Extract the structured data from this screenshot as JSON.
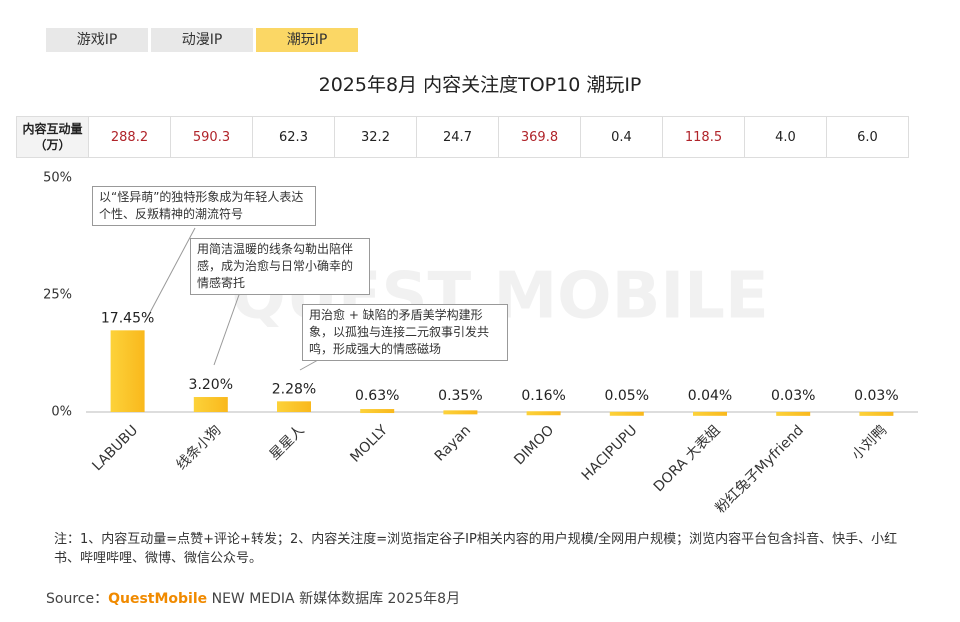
{
  "tabs": [
    "游戏IP",
    "动漫IP",
    "潮玩IP"
  ],
  "chart_data": {
    "type": "bar",
    "title": "2025年8月 内容关注度TOP10 潮玩IP",
    "watermark": "QUEST MOBILE",
    "categories": [
      "LABUBU",
      "线条小狗",
      "星星人",
      "MOLLY",
      "Rayan",
      "DIMOO",
      "HACIPUPU",
      "DORA 大表姐",
      "粉红兔子Myfriend",
      "小刘鸭"
    ],
    "values": [
      17.45,
      3.2,
      2.28,
      0.63,
      0.35,
      0.16,
      0.05,
      0.04,
      0.03,
      0.03
    ],
    "value_labels": [
      "17.45%",
      "3.20%",
      "2.28%",
      "0.63%",
      "0.35%",
      "0.16%",
      "0.05%",
      "0.04%",
      "0.03%",
      "0.03%"
    ],
    "color": "#f9b81c",
    "ylim": [
      0,
      50
    ],
    "yticks": [
      {
        "value": 0,
        "label": "0%"
      },
      {
        "value": 25,
        "label": "25%"
      },
      {
        "value": 50,
        "label": "50%"
      }
    ],
    "table_label": "内容互动量（万）",
    "table_values": [
      "288.2",
      "590.3",
      "62.3",
      "32.2",
      "24.7",
      "369.8",
      "0.4",
      "118.5",
      "4.0",
      "6.0"
    ],
    "table_colors": [
      "#b0242a",
      "#b0242a",
      "#222222",
      "#222222",
      "#222222",
      "#b0242a",
      "#222222",
      "#b0242a",
      "#222222",
      "#222222"
    ],
    "annotations": [
      "以“怪异萌”的独特形象成为年轻人表达个性、反叛精神的潮流符号",
      "用简洁温暖的线条勾勒出陪伴感，成为治愈与日常小确幸的情感寄托",
      "用治愈 + 缺陷的矛盾美学构建形象，以孤独与连接二元叙事引发共鸣，形成强大的情感磁场"
    ],
    "footnote": "注：1、内容互动量=点赞+评论+转发；2、内容关注度=浏览指定谷子IP相关内容的用户规模/全网用户规模；浏览内容平台包含抖音、快手、小红书、哔哩哔哩、微博、微信公众号。",
    "source": [
      "Source：",
      "QuestMobile",
      " NEW MEDIA 新媒体数据库 2025年8月"
    ]
  }
}
